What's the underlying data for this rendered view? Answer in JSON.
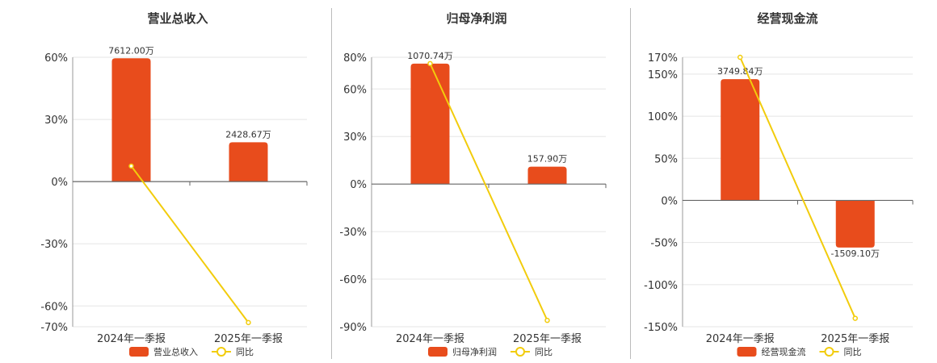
{
  "colors": {
    "bar": "#E84C1C",
    "line": "#F2CC0C",
    "grid": "#e5e5e5",
    "axis": "#666666"
  },
  "chart_data": [
    {
      "type": "bar",
      "title": "营业总收入",
      "categories": [
        "2024年一季报",
        "2025年一季报"
      ],
      "series": [
        {
          "name": "营业总收入",
          "type": "bar",
          "values": [
            59.5,
            19
          ],
          "labels": [
            "7612.00万",
            "2428.67万"
          ]
        },
        {
          "name": "同比",
          "type": "line",
          "values": [
            7.5,
            -68
          ]
        }
      ],
      "yticks": [
        60,
        30,
        0,
        -30,
        -60,
        -70
      ],
      "ytick_labels": [
        "60%",
        "30%",
        "0%",
        "-30%",
        "-60%",
        "-70%"
      ],
      "ylim": [
        -70,
        60
      ],
      "legend": "bottom"
    },
    {
      "type": "bar",
      "title": "归母净利润",
      "categories": [
        "2024年一季报",
        "2025年一季报"
      ],
      "series": [
        {
          "name": "归母净利润",
          "type": "bar",
          "values": [
            76,
            11
          ],
          "labels": [
            "1070.74万",
            "157.90万"
          ]
        },
        {
          "name": "同比",
          "type": "line",
          "values": [
            76,
            -86
          ]
        }
      ],
      "yticks": [
        80,
        60,
        30,
        0,
        -30,
        -60,
        -90
      ],
      "ytick_labels": [
        "80%",
        "60%",
        "30%",
        "0%",
        "-30%",
        "-60%",
        "-90%"
      ],
      "ylim": [
        -90,
        80
      ],
      "legend": "bottom"
    },
    {
      "type": "bar",
      "title": "经营现金流",
      "categories": [
        "2024年一季报",
        "2025年一季报"
      ],
      "series": [
        {
          "name": "经营现金流",
          "type": "bar",
          "values": [
            144,
            -56
          ],
          "labels": [
            "3749.84万",
            "-1509.10万"
          ]
        },
        {
          "name": "同比",
          "type": "line",
          "values": [
            170,
            -140
          ]
        }
      ],
      "yticks": [
        170,
        150,
        100,
        50,
        0,
        -50,
        -100,
        -150
      ],
      "ytick_labels": [
        "170%",
        "150%",
        "100%",
        "50%",
        "0%",
        "-50%",
        "-100%",
        "-150%"
      ],
      "ylim": [
        -150,
        170
      ],
      "legend": "bottom"
    }
  ]
}
